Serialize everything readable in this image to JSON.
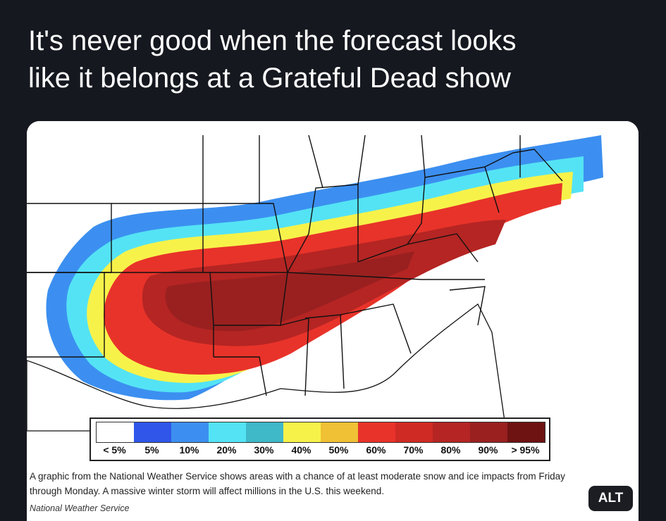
{
  "post": {
    "text": "It's never good when the forecast looks\nlike it belongs at a Grateful Dead show"
  },
  "image": {
    "legend": {
      "labels": [
        "< 5%",
        "5%",
        "10%",
        "20%",
        "30%",
        "40%",
        "50%",
        "60%",
        "70%",
        "80%",
        "90%",
        "> 95%"
      ],
      "colors": [
        "#ffffff",
        "#2f56e8",
        "#3c8ff0",
        "#54e3f5",
        "#3fb8c8",
        "#f7f24a",
        "#f0c035",
        "#e8332a",
        "#d02a24",
        "#b42523",
        "#9a2020",
        "#6e1212"
      ]
    },
    "caption": "A graphic from the National Weather Service shows areas with a chance of at least moderate snow and ice impacts from Friday through Monday. A massive winter storm will affect millions in the U.S. this weekend.",
    "credit": "National Weather Service"
  },
  "alt_button": {
    "label": "ALT"
  }
}
